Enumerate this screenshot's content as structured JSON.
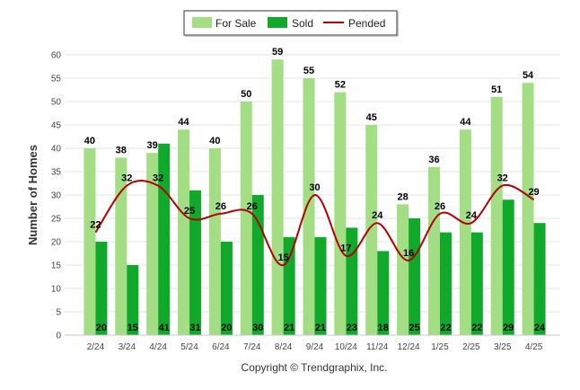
{
  "chart_data": {
    "type": "bar",
    "categories": [
      "2/24",
      "3/24",
      "4/24",
      "5/24",
      "6/24",
      "7/24",
      "8/24",
      "9/24",
      "10/24",
      "11/24",
      "12/24",
      "1/25",
      "2/25",
      "3/25",
      "4/25"
    ],
    "series": [
      {
        "name": "For Sale",
        "type": "bar",
        "color": "#a3de85",
        "values": [
          40,
          38,
          39,
          44,
          40,
          50,
          59,
          55,
          52,
          45,
          28,
          36,
          44,
          51,
          54
        ],
        "labels": [
          "40",
          "38",
          "39",
          "44",
          "40",
          "50",
          "59",
          "55",
          "52",
          "45",
          "28",
          "36",
          "44",
          "51",
          "54"
        ]
      },
      {
        "name": "Sold",
        "type": "bar",
        "color": "#11a92c",
        "values": [
          20,
          15,
          41,
          31,
          20,
          30,
          21,
          21,
          23,
          18,
          25,
          22,
          22,
          29,
          24
        ],
        "labels": [
          "20",
          "15",
          "41",
          "31",
          "20",
          "30",
          "21",
          "21",
          "23",
          "18",
          "25",
          "22",
          "22",
          "29",
          "24"
        ]
      },
      {
        "name": "Pended",
        "type": "line",
        "color": "#b40000",
        "values": [
          22,
          32,
          32,
          25,
          26,
          26,
          15,
          30,
          17,
          24,
          16,
          26,
          24,
          32,
          29
        ],
        "labels": [
          "22",
          "32",
          "32",
          "25",
          "26",
          "26",
          "15",
          "30",
          "17",
          "24",
          "16",
          "26",
          "24",
          "32",
          "29"
        ]
      }
    ],
    "ylabel": "Number of Homes",
    "xlabel": "",
    "ylim": [
      0,
      60
    ],
    "yticks": [
      "0",
      "5",
      "10",
      "15",
      "20",
      "25",
      "30",
      "35",
      "40",
      "45",
      "50",
      "55",
      "60"
    ],
    "grid": true,
    "legend_position": "top-center",
    "credit": "Copyright © Trendgraphix, Inc."
  }
}
